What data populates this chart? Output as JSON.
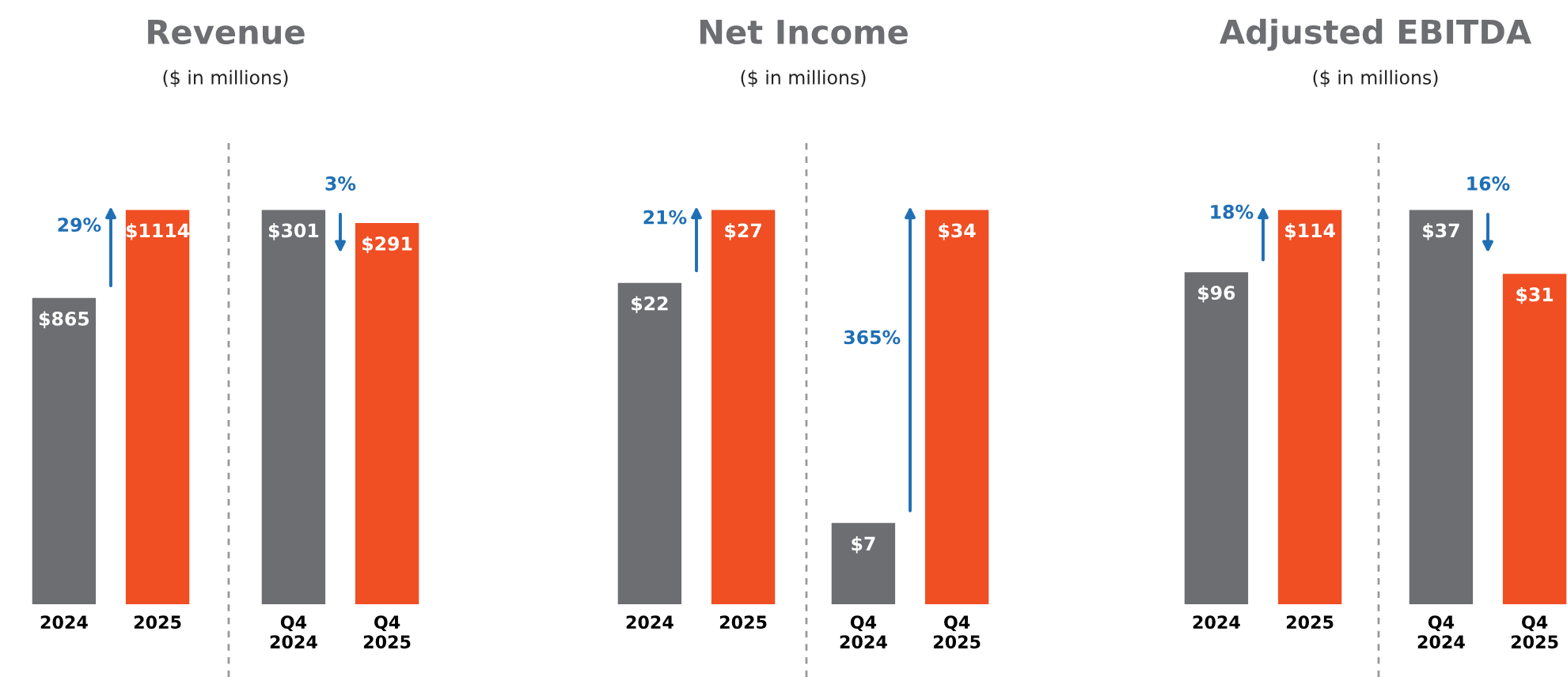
{
  "chart_data": [
    {
      "type": "bar",
      "title": "Revenue",
      "subtitle": "($ in millions)",
      "categories": [
        "2024",
        "2025"
      ],
      "values": [
        865,
        1114
      ],
      "colors": [
        "#6d6e71",
        "#f04e23"
      ],
      "value_labels": [
        "$865",
        "$1114"
      ],
      "annotations": [
        "29%"
      ]
    },
    {
      "type": "bar",
      "categories": [
        "Q4\n2024",
        "Q4\n2025"
      ],
      "values": [
        301,
        291
      ],
      "colors": [
        "#6d6e71",
        "#f04e23"
      ],
      "value_labels": [
        "$301",
        "$291"
      ],
      "annotations": [
        "3%"
      ]
    },
    {
      "type": "bar",
      "title": "Net Income",
      "subtitle": "($ in millions)",
      "categories": [
        "2024",
        "2025"
      ],
      "values": [
        22,
        27
      ],
      "colors": [
        "#6d6e71",
        "#f04e23"
      ],
      "value_labels": [
        "$22",
        "$27"
      ],
      "annotations": [
        "21%"
      ]
    },
    {
      "type": "bar",
      "categories": [
        "Q4\n2024",
        "Q4\n2025"
      ],
      "values": [
        7,
        34
      ],
      "colors": [
        "#6d6e71",
        "#f04e23"
      ],
      "value_labels": [
        "$7",
        "$34"
      ],
      "annotations": [
        "365%"
      ]
    },
    {
      "type": "bar",
      "title": "Adjusted EBITDA",
      "subtitle": "($ in millions)",
      "categories": [
        "2024",
        "2025"
      ],
      "values": [
        96,
        114
      ],
      "colors": [
        "#6d6e71",
        "#f04e23"
      ],
      "value_labels": [
        "$96",
        "$114"
      ],
      "annotations": [
        "18%"
      ]
    },
    {
      "type": "bar",
      "categories": [
        "Q4\n2024",
        "Q4\n2025"
      ],
      "values": [
        37,
        31
      ],
      "colors": [
        "#6d6e71",
        "#f04e23"
      ],
      "value_labels": [
        "$37",
        "$31"
      ],
      "annotations": [
        "16%"
      ]
    }
  ]
}
